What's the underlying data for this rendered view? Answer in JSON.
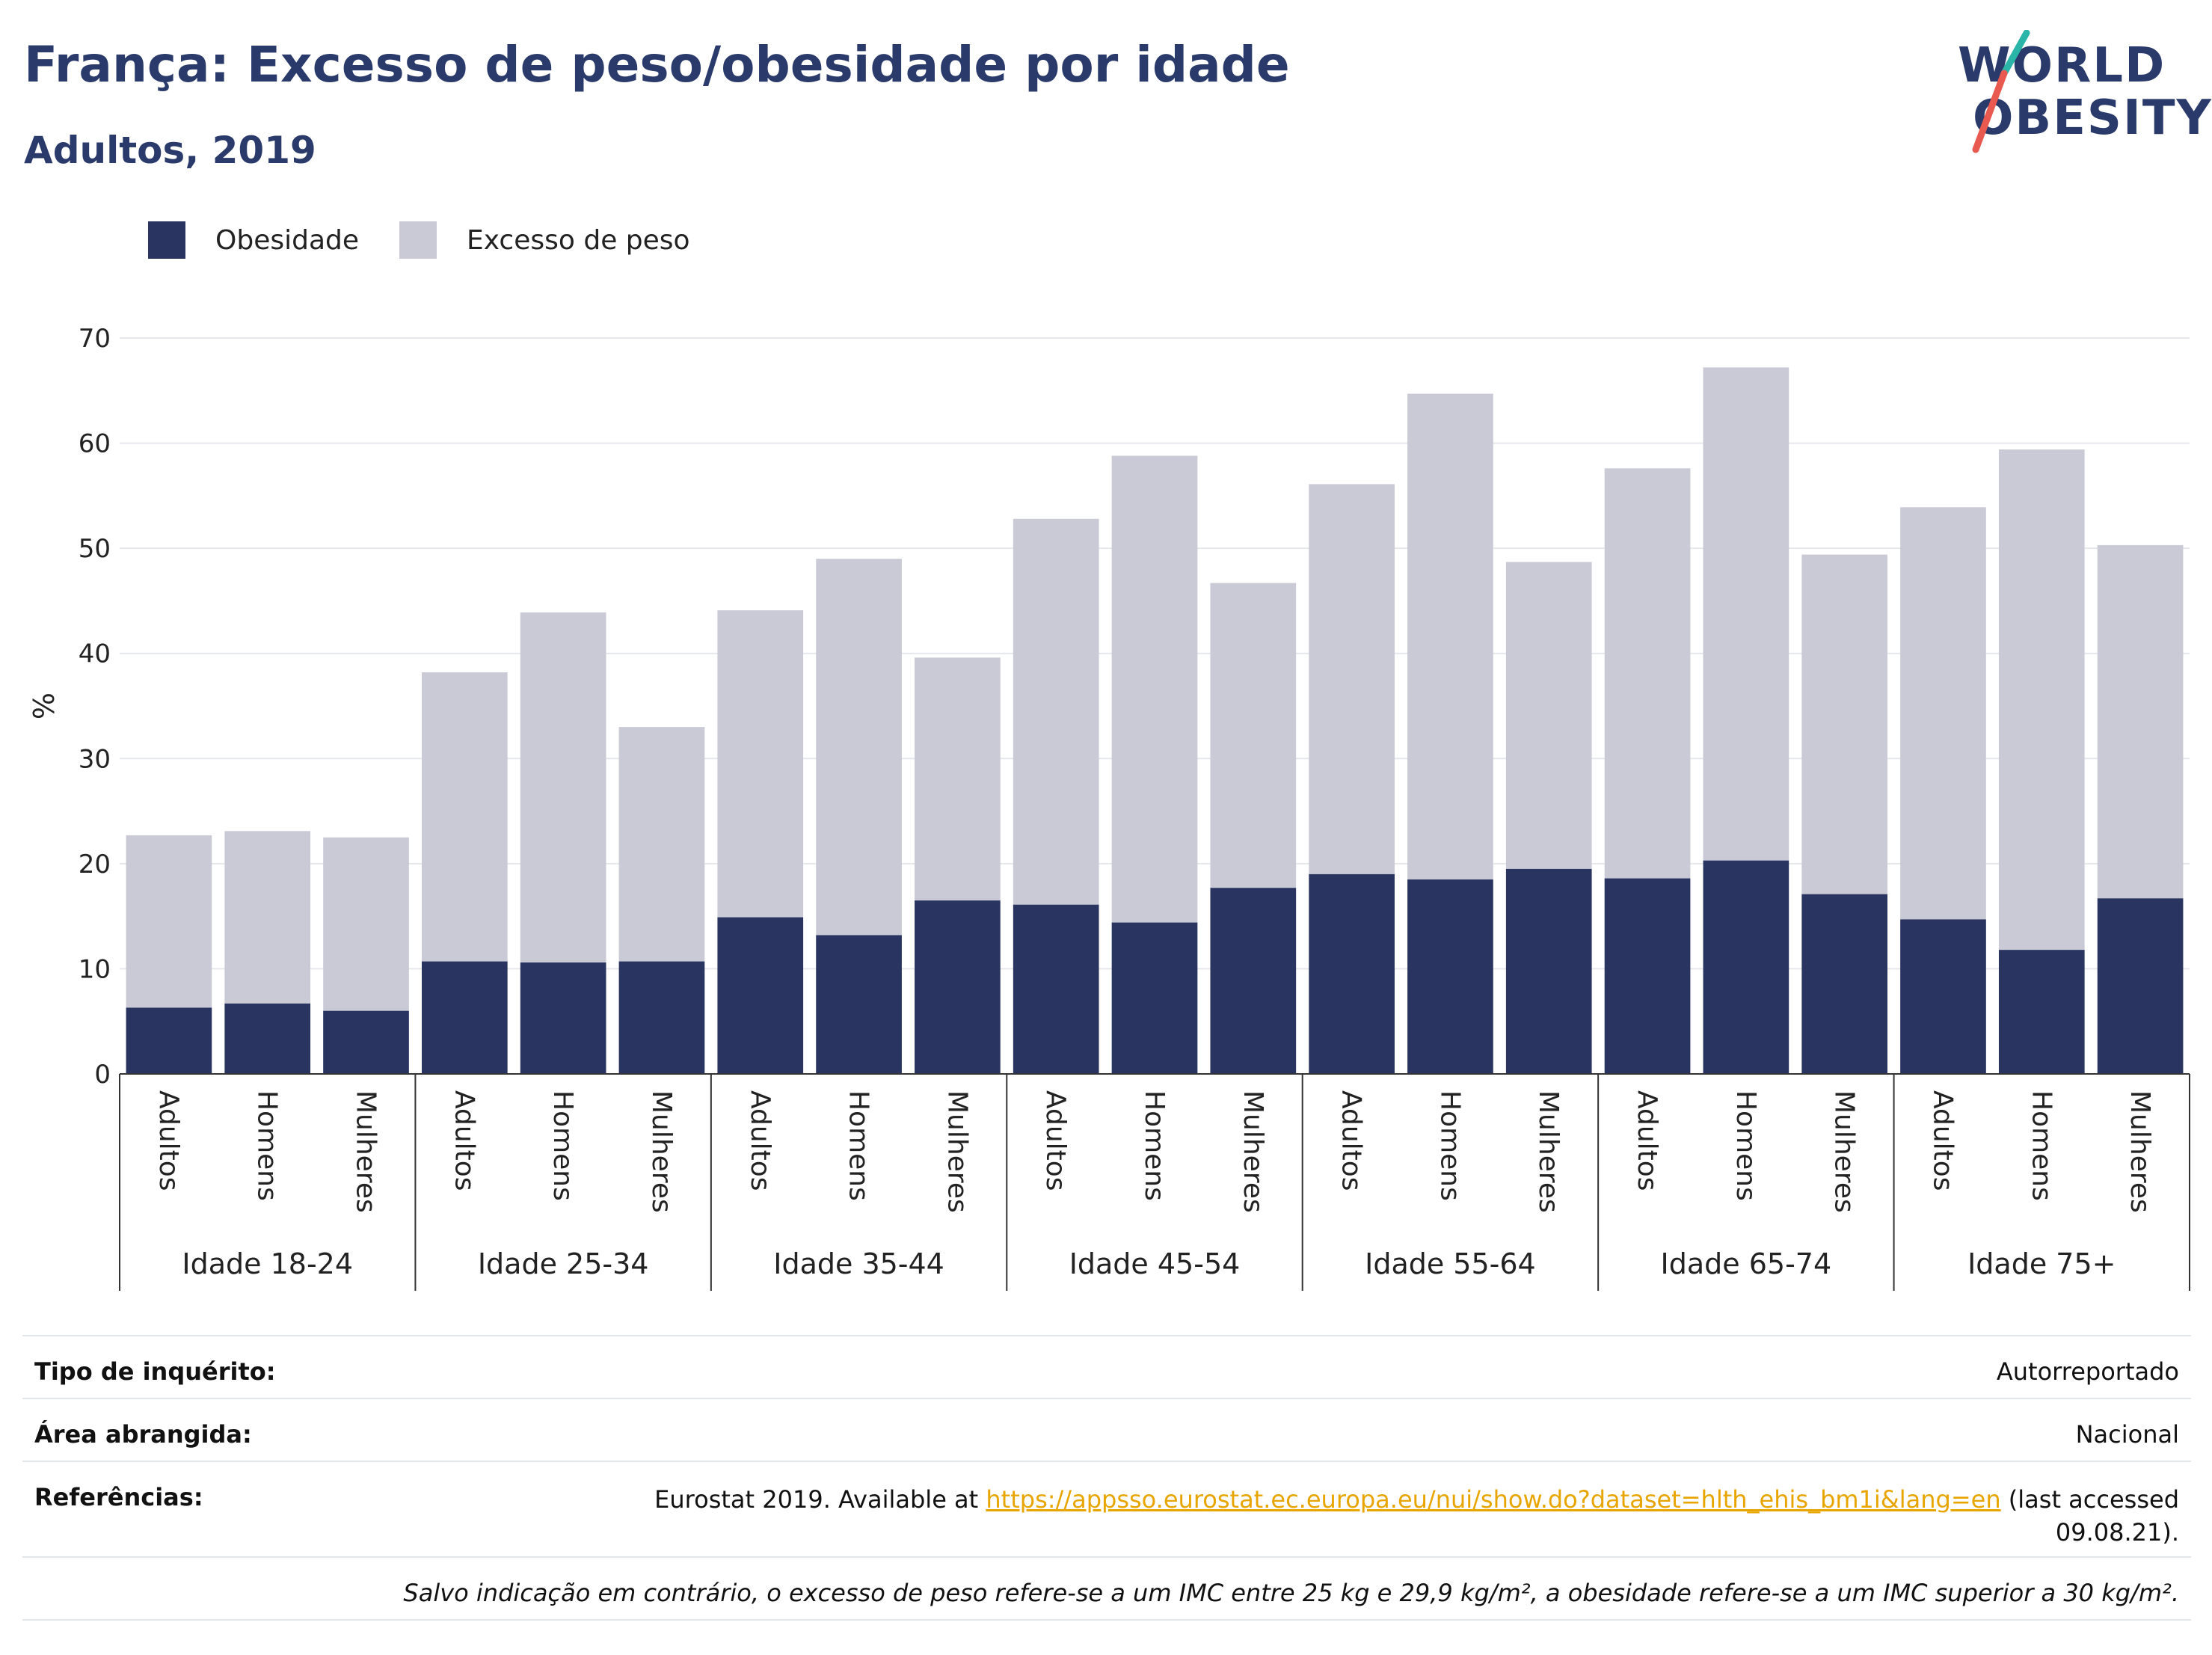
{
  "header": {
    "title": "França: Excesso de peso/obesidade por idade",
    "subtitle": "Adultos, 2019"
  },
  "logo": {
    "line1": "WORLD",
    "line2": "OBESITY",
    "brand_colors": {
      "text": "#2a3a6b",
      "slash_top": "#2bb5a8",
      "slash_bottom": "#e85a4f"
    }
  },
  "legend": {
    "items": [
      {
        "label": "Obesidade",
        "color": "#293560"
      },
      {
        "label": "Excesso de peso",
        "color": "#c9cad5"
      }
    ]
  },
  "chart_data": {
    "type": "bar",
    "stacked": true,
    "ylabel": "%",
    "ylim": [
      0,
      70
    ],
    "yticks": [
      0,
      10,
      20,
      30,
      40,
      50,
      60,
      70
    ],
    "grid": true,
    "legend_position": "top-left",
    "groups": [
      "Idade 18-24",
      "Idade 25-34",
      "Idade 35-44",
      "Idade 45-54",
      "Idade 55-64",
      "Idade 65-74",
      "Idade 75+"
    ],
    "subcategories": [
      "Adultos",
      "Homens",
      "Mulheres"
    ],
    "series": [
      {
        "name": "Obesidade",
        "color": "#293560",
        "values": [
          6.3,
          6.7,
          6.0,
          10.7,
          10.6,
          10.7,
          14.9,
          13.2,
          16.5,
          16.1,
          14.4,
          17.7,
          19.0,
          18.5,
          19.5,
          18.6,
          20.3,
          17.1,
          14.7,
          11.8,
          16.7
        ]
      },
      {
        "name": "Excesso de peso",
        "color": "#c9cad5",
        "values": [
          16.4,
          16.4,
          16.5,
          27.5,
          33.3,
          22.3,
          29.2,
          35.8,
          23.1,
          36.7,
          44.4,
          29.0,
          37.1,
          46.2,
          29.2,
          39.0,
          46.9,
          32.3,
          39.2,
          47.6,
          33.6
        ]
      }
    ],
    "totals": [
      22.7,
      23.1,
      22.5,
      38.2,
      43.9,
      33.0,
      44.1,
      49.0,
      39.6,
      52.8,
      58.8,
      46.7,
      56.1,
      64.7,
      48.7,
      57.6,
      67.2,
      49.4,
      53.9,
      59.4,
      50.3
    ]
  },
  "meta": {
    "survey_type_label": "Tipo de inquérito:",
    "survey_type_value": "Autorreportado",
    "area_label": "Área abrangida:",
    "area_value": "Nacional",
    "references_label": "Referências:",
    "references_prefix": "Eurostat 2019. Available at ",
    "references_link": "https://appsso.eurostat.ec.europa.eu/nui/show.do?dataset=hlth_ehis_bm1i&lang=en",
    "references_suffix_1": " (last accessed",
    "references_suffix_2": "09.08.21).",
    "note": "Salvo indicação em contrário, o excesso de peso refere-se a um IMC entre 25 kg e 29,9 kg/m², a obesidade refere-se a um IMC superior a 30 kg/m²."
  }
}
